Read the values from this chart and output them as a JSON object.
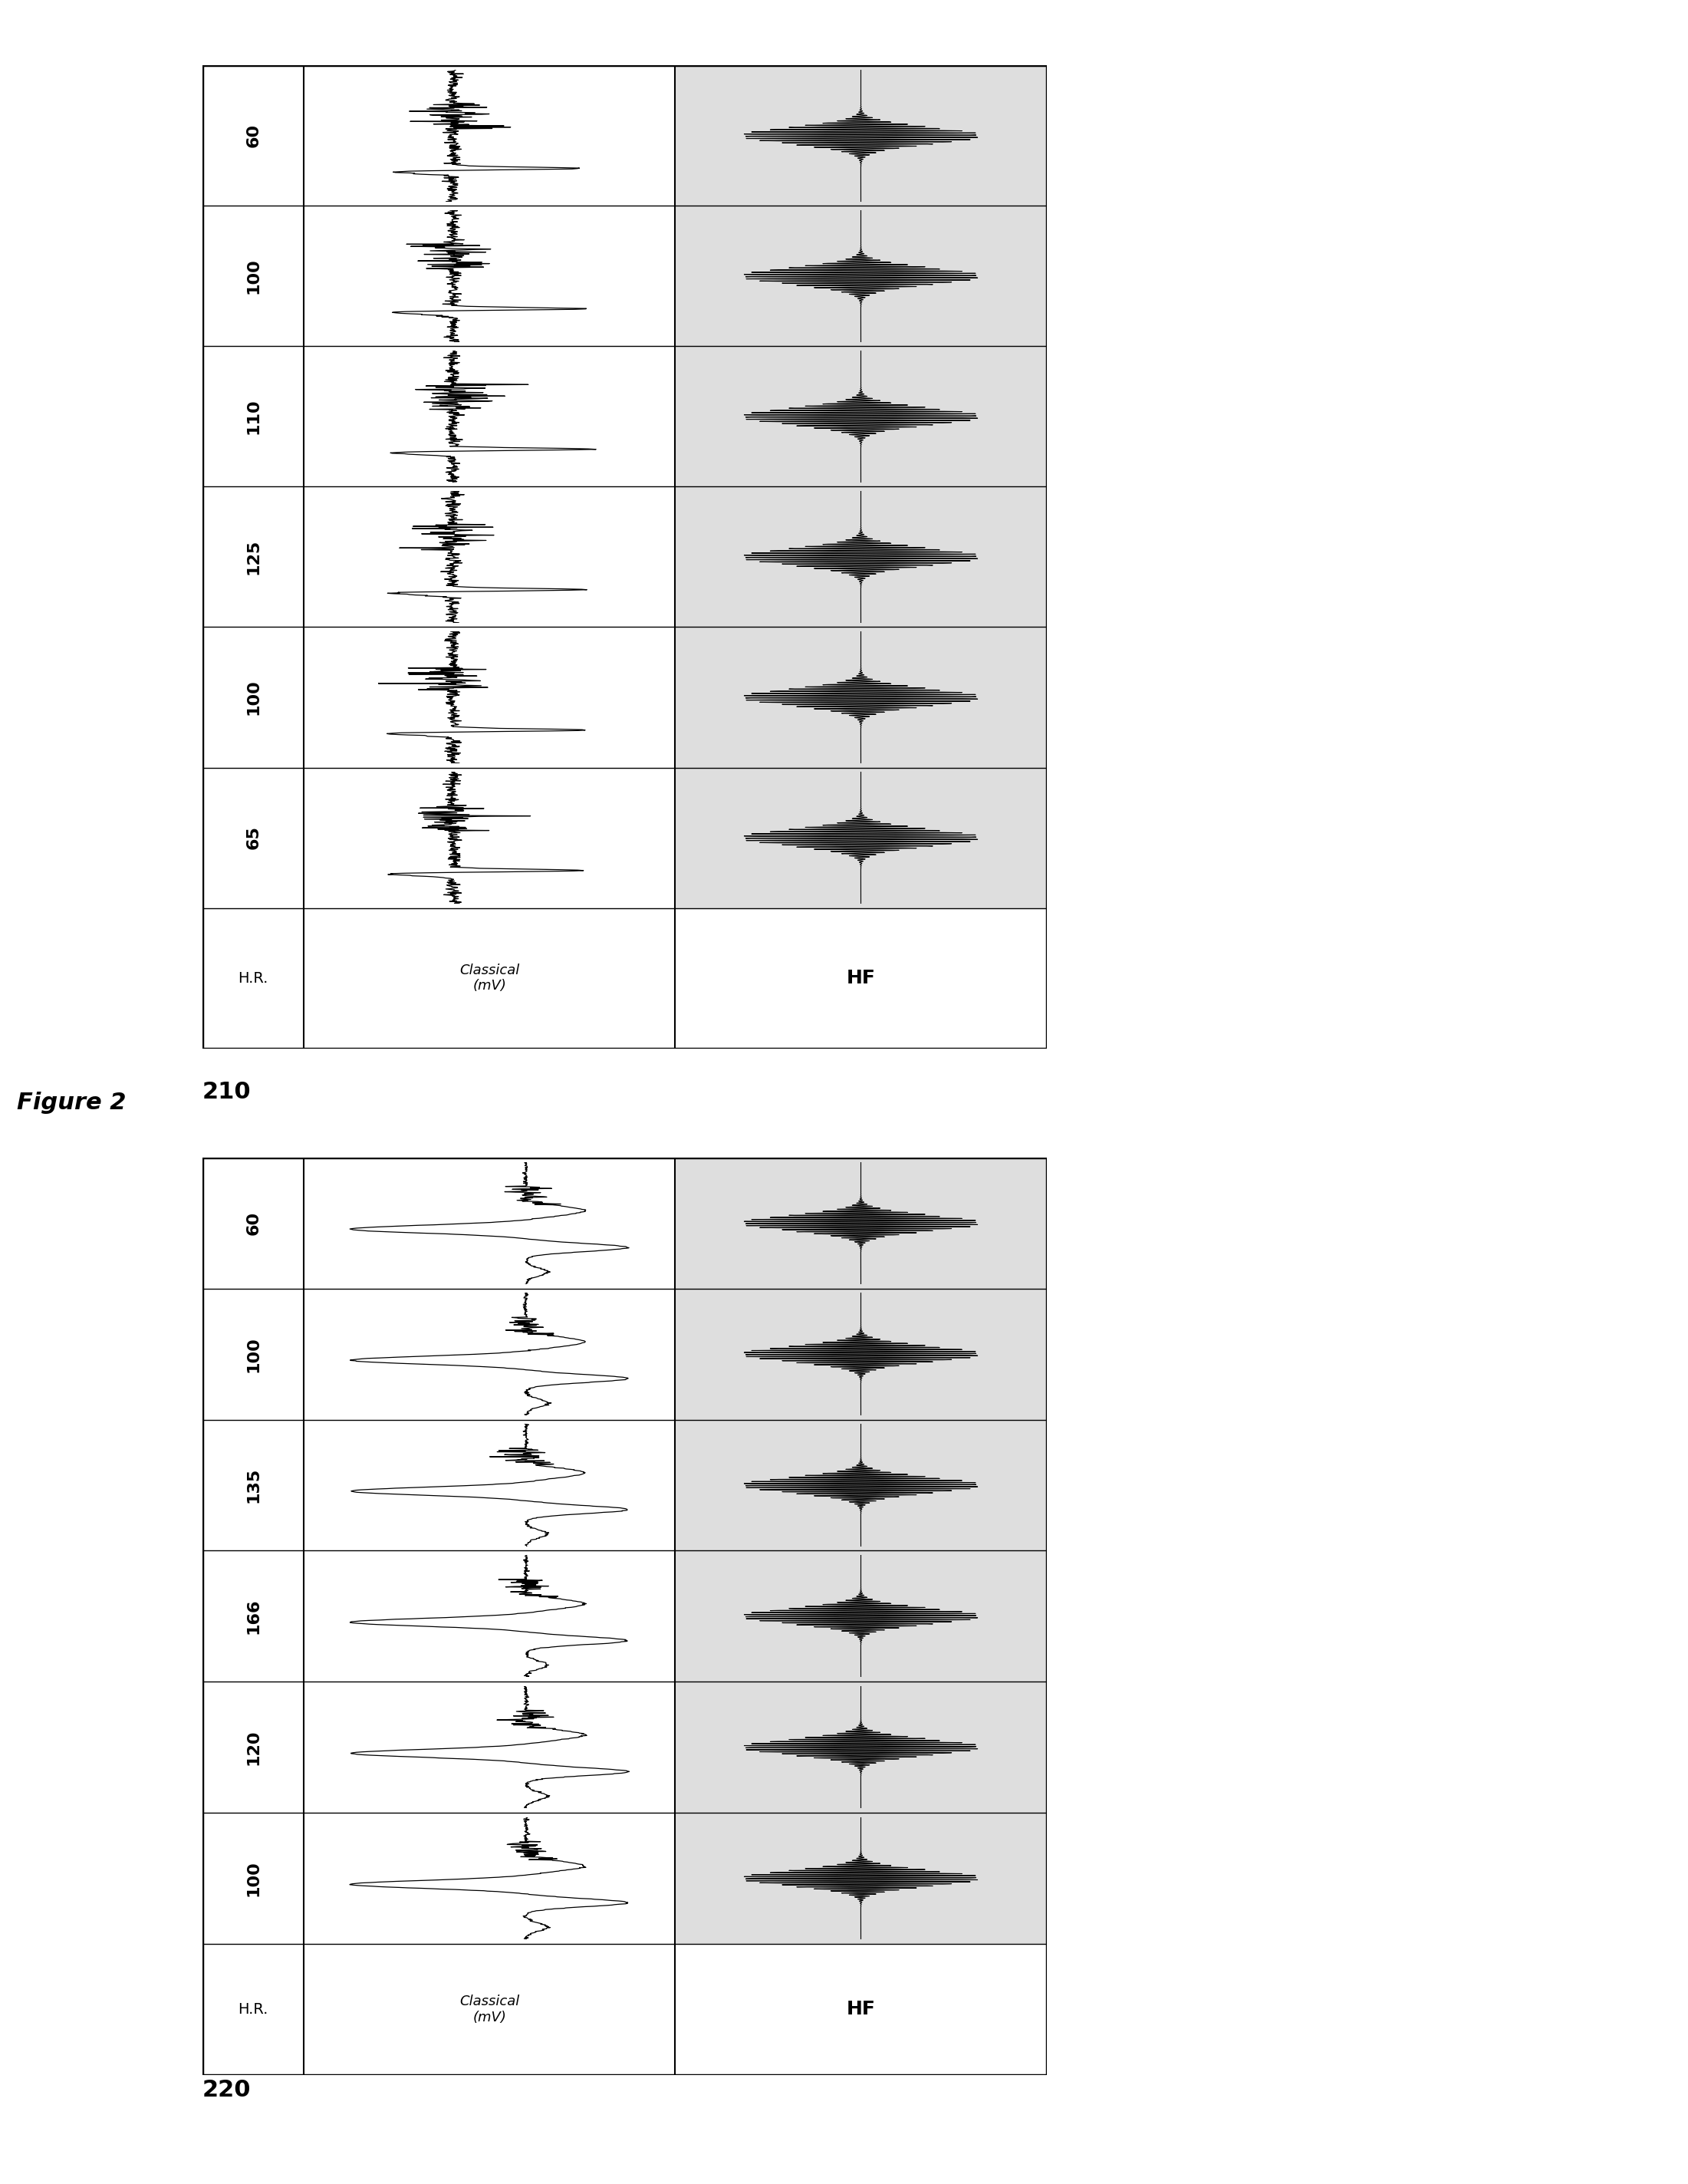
{
  "figure_title": "Figure 2",
  "table1_label": "210",
  "table2_label": "220",
  "table1_hr_rows": [
    "65",
    "100",
    "125",
    "110",
    "100",
    "60",
    "H.R."
  ],
  "table2_hr_rows": [
    "100",
    "120",
    "166",
    "135",
    "100",
    "60",
    "H.R."
  ],
  "col_headers_t1": [
    "Classical\n(mV)",
    "HF"
  ],
  "col_headers_t2": [
    "Classical\n(mV)",
    "HF"
  ],
  "bg_color": "#ffffff",
  "hf_cell_color": "#c8c8c8",
  "border_color": "#000000",
  "text_color": "#000000"
}
